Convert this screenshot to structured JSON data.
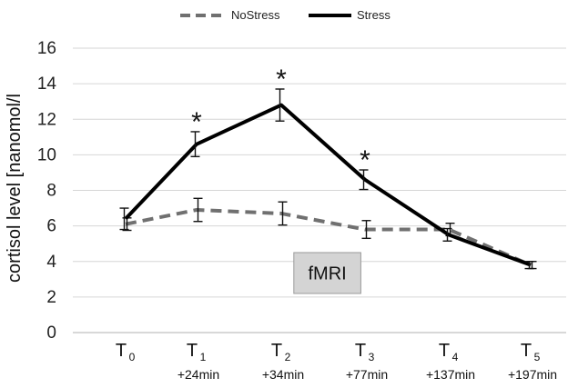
{
  "chart_data": {
    "type": "line",
    "title": "",
    "xlabel": "",
    "ylabel": "cortisol level [nanomol/l",
    "ylim": [
      0,
      16
    ],
    "yticks": [
      0,
      2,
      4,
      6,
      8,
      10,
      12,
      14,
      16
    ],
    "grid": "horizontal",
    "legend_position": "top",
    "categories": [
      {
        "base": "T",
        "sub": "0",
        "time": ""
      },
      {
        "base": "T",
        "sub": "1",
        "time": "+24min"
      },
      {
        "base": "T",
        "sub": "2",
        "time": "+34min"
      },
      {
        "base": "T",
        "sub": "3",
        "time": "+77min"
      },
      {
        "base": "T",
        "sub": "4",
        "time": "+137min"
      },
      {
        "base": "T",
        "sub": "5",
        "time": "+197min"
      }
    ],
    "series": [
      {
        "name": "NoStress",
        "color": "#707070",
        "style": "dashed",
        "values": [
          6.1,
          6.9,
          6.7,
          5.8,
          5.8,
          3.8
        ],
        "error": [
          0.35,
          0.65,
          0.65,
          0.5,
          0.35,
          0.2
        ]
      },
      {
        "name": "Stress",
        "color": "#000000",
        "style": "solid",
        "values": [
          6.4,
          10.6,
          12.8,
          8.6,
          5.5,
          3.8
        ],
        "error": [
          0.6,
          0.7,
          0.9,
          0.55,
          0.35,
          0.2
        ]
      }
    ],
    "significance": {
      "marker": "*",
      "indices": [
        1,
        2,
        3
      ]
    },
    "annotation": {
      "text": "fMRI",
      "x_start": 2.15,
      "x_end": 2.95,
      "y_low": 2.2,
      "y_high": 4.5
    }
  }
}
